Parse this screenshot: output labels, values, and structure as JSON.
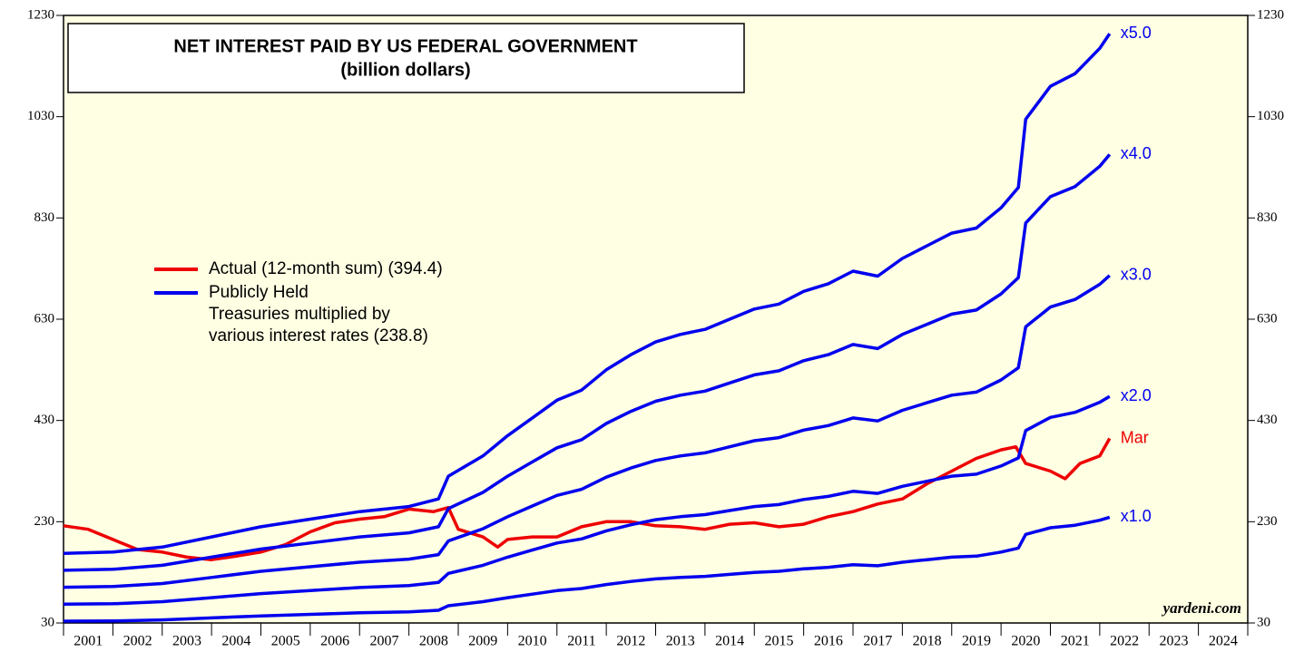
{
  "chart_data": {
    "type": "line",
    "title": [
      "NET INTEREST PAID BY US FEDERAL GOVERNMENT",
      "(billion dollars)"
    ],
    "source": "yardeni.com",
    "ylim": [
      30,
      1230
    ],
    "yticks": [
      30,
      230,
      430,
      630,
      830,
      1030,
      1230
    ],
    "xlim": [
      2001,
      2025
    ],
    "xticks": [
      2001,
      2002,
      2003,
      2004,
      2005,
      2006,
      2007,
      2008,
      2009,
      2010,
      2011,
      2012,
      2013,
      2014,
      2015,
      2016,
      2017,
      2018,
      2019,
      2020,
      2021,
      2022,
      2023,
      2024,
      2025
    ],
    "categories": [
      "2001",
      "2002",
      "2003",
      "2004",
      "2005",
      "2006",
      "2007",
      "2008",
      "2009",
      "2010",
      "2011",
      "2012",
      "2013",
      "2014",
      "2015",
      "2016",
      "2017",
      "2018",
      "2019",
      "2020",
      "2021",
      "2022",
      "2023",
      "2024"
    ],
    "legend": [
      {
        "color": "#ee0000",
        "lines": [
          "Actual (12-month sum) (394.4)"
        ]
      },
      {
        "color": "#0000ee",
        "lines": [
          "Publicly Held",
          "Treasuries multiplied by",
          "various interest rates (238.8)"
        ]
      }
    ],
    "series": [
      {
        "name": "Mar",
        "color": "#ee0000",
        "x": [
          2001,
          2001.5,
          2002,
          2002.5,
          2003,
          2003.5,
          2004,
          2004.5,
          2005,
          2005.5,
          2006,
          2006.5,
          2007,
          2007.5,
          2008,
          2008.5,
          2008.8,
          2009,
          2009.5,
          2009.8,
          2010,
          2010.5,
          2011,
          2011.5,
          2012,
          2012.5,
          2013,
          2013.5,
          2014,
          2014.5,
          2015,
          2015.5,
          2016,
          2016.5,
          2017,
          2017.5,
          2018,
          2018.5,
          2019,
          2019.5,
          2020,
          2020.3,
          2020.5,
          2021,
          2021.3,
          2021.6,
          2022,
          2022.2
        ],
        "values": [
          222,
          215,
          195,
          175,
          170,
          160,
          155,
          162,
          170,
          185,
          210,
          228,
          235,
          240,
          255,
          250,
          258,
          215,
          200,
          180,
          195,
          200,
          200,
          220,
          230,
          230,
          222,
          220,
          215,
          225,
          228,
          220,
          225,
          240,
          250,
          265,
          275,
          305,
          330,
          355,
          372,
          378,
          345,
          330,
          315,
          345,
          360,
          394.4
        ]
      },
      {
        "name": "x1.0",
        "color": "#0000ee",
        "x": [
          2001,
          2002,
          2003,
          2004,
          2005,
          2006,
          2007,
          2008,
          2008.6,
          2008.8,
          2009.5,
          2010,
          2010.5,
          2011,
          2011.5,
          2012,
          2012.5,
          2013,
          2013.5,
          2014,
          2014.5,
          2015,
          2015.5,
          2016,
          2016.5,
          2017,
          2017.5,
          2018,
          2018.5,
          2019,
          2019.5,
          2020,
          2020.35,
          2020.5,
          2021,
          2021.5,
          2022,
          2022.2
        ],
        "values": [
          33.5,
          34,
          36,
          40,
          44,
          47,
          50,
          52,
          55,
          64,
          72,
          80,
          87,
          94,
          98,
          106,
          112,
          117,
          120,
          122,
          126,
          130,
          132,
          137,
          140,
          145,
          143,
          150,
          155,
          160,
          162,
          170,
          178,
          205,
          218,
          223,
          233,
          238.8
        ]
      },
      {
        "name": "x2.0",
        "color": "#0000ee",
        "x": [
          2001,
          2002,
          2003,
          2004,
          2005,
          2006,
          2007,
          2008,
          2008.6,
          2008.8,
          2009.5,
          2010,
          2010.5,
          2011,
          2011.5,
          2012,
          2012.5,
          2013,
          2013.5,
          2014,
          2014.5,
          2015,
          2015.5,
          2016,
          2016.5,
          2017,
          2017.5,
          2018,
          2018.5,
          2019,
          2019.5,
          2020,
          2020.35,
          2020.5,
          2021,
          2021.5,
          2022,
          2022.2
        ],
        "values": [
          67,
          68,
          72,
          80,
          88,
          94,
          100,
          104,
          110,
          128,
          144,
          160,
          174,
          188,
          196,
          212,
          224,
          234,
          240,
          244,
          252,
          260,
          264,
          274,
          280,
          290,
          286,
          300,
          310,
          320,
          324,
          340,
          356,
          410,
          436,
          446,
          466,
          477.6
        ]
      },
      {
        "name": "x3.0",
        "color": "#0000ee",
        "x": [
          2001,
          2002,
          2003,
          2004,
          2005,
          2006,
          2007,
          2008,
          2008.6,
          2008.8,
          2009.5,
          2010,
          2010.5,
          2011,
          2011.5,
          2012,
          2012.5,
          2013,
          2013.5,
          2014,
          2014.5,
          2015,
          2015.5,
          2016,
          2016.5,
          2017,
          2017.5,
          2018,
          2018.5,
          2019,
          2019.5,
          2020,
          2020.35,
          2020.5,
          2021,
          2021.5,
          2022,
          2022.2
        ],
        "values": [
          100.5,
          102,
          108,
          120,
          132,
          141,
          150,
          156,
          165,
          192,
          216,
          240,
          261,
          282,
          294,
          318,
          336,
          351,
          360,
          366,
          378,
          390,
          396,
          411,
          420,
          435,
          429,
          450,
          465,
          480,
          486,
          510,
          534,
          615,
          654,
          669,
          699,
          716.4
        ]
      },
      {
        "name": "x4.0",
        "color": "#0000ee",
        "x": [
          2001,
          2002,
          2003,
          2004,
          2005,
          2006,
          2007,
          2008,
          2008.6,
          2008.8,
          2009.5,
          2010,
          2010.5,
          2011,
          2011.5,
          2012,
          2012.5,
          2013,
          2013.5,
          2014,
          2014.5,
          2015,
          2015.5,
          2016,
          2016.5,
          2017,
          2017.5,
          2018,
          2018.5,
          2019,
          2019.5,
          2020,
          2020.35,
          2020.5,
          2021,
          2021.5,
          2022,
          2022.2
        ],
        "values": [
          134,
          136,
          144,
          160,
          176,
          188,
          200,
          208,
          220,
          256,
          288,
          320,
          348,
          376,
          392,
          424,
          448,
          468,
          480,
          488,
          504,
          520,
          528,
          548,
          560,
          580,
          572,
          600,
          620,
          640,
          648,
          680,
          712,
          820,
          872,
          892,
          932,
          955.2
        ]
      },
      {
        "name": "x5.0",
        "color": "#0000ee",
        "x": [
          2001,
          2002,
          2003,
          2004,
          2005,
          2006,
          2007,
          2008,
          2008.6,
          2008.8,
          2009.5,
          2010,
          2010.5,
          2011,
          2011.5,
          2012,
          2012.5,
          2013,
          2013.5,
          2014,
          2014.5,
          2015,
          2015.5,
          2016,
          2016.5,
          2017,
          2017.5,
          2018,
          2018.5,
          2019,
          2019.5,
          2020,
          2020.35,
          2020.5,
          2021,
          2021.5,
          2022,
          2022.2
        ],
        "values": [
          167.5,
          170,
          180,
          200,
          220,
          235,
          250,
          260,
          275,
          320,
          360,
          400,
          435,
          470,
          490,
          530,
          560,
          585,
          600,
          610,
          630,
          650,
          660,
          685,
          700,
          725,
          715,
          750,
          775,
          800,
          810,
          850,
          890,
          1025,
          1090,
          1115,
          1165,
          1194
        ]
      }
    ]
  }
}
